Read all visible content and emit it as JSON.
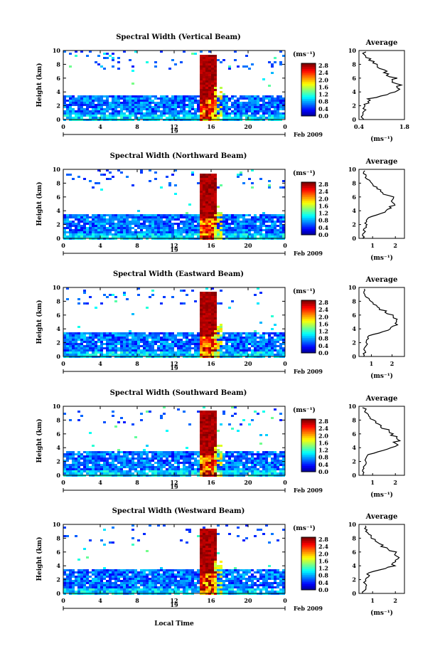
{
  "figure": {
    "xlabel": "Local Time",
    "date_label": "Feb 2009",
    "day_label": "19",
    "unit_label": "(ms⁻¹)",
    "unit_label_avg": "(ms⁻¹)",
    "avg_title": "Average",
    "ylabel": "Height (km)"
  },
  "chart_data": [
    {
      "type": "heatmap",
      "title": "Spectral Width (Vertical Beam)",
      "ylabel": "Height (km)",
      "x_ticks": [
        "0",
        "4",
        "8",
        "12",
        "16",
        "20",
        "0"
      ],
      "y_ticks": [
        "0",
        "2",
        "4",
        "6",
        "8",
        "10"
      ],
      "xlim": [
        0,
        24
      ],
      "ylim": [
        0,
        10
      ],
      "colorbar": {
        "label": "(ms⁻¹)",
        "ticks": [
          "2.8",
          "2.4",
          "2.0",
          "1.6",
          "1.2",
          "0.8",
          "0.4",
          "0.0"
        ],
        "range": [
          0,
          2.8
        ]
      },
      "average": {
        "title": "Average",
        "xlabel": "(ms⁻¹)",
        "x_ticks": [
          "0.4",
          "1.8"
        ],
        "xlim": [
          0.4,
          1.8
        ],
        "y_ticks": [
          "0",
          "2",
          "4",
          "6",
          "8",
          "10"
        ],
        "heights": [
          0,
          1,
          2,
          3,
          3.5,
          4,
          5,
          6,
          7,
          8,
          9,
          10
        ],
        "values": [
          0.5,
          0.55,
          0.6,
          0.7,
          1.2,
          1.45,
          1.6,
          1.5,
          1.2,
          0.9,
          0.65,
          0.55
        ]
      }
    },
    {
      "type": "heatmap",
      "title": "Spectral Width (Northward Beam)",
      "ylabel": "Height (km)",
      "x_ticks": [
        "0",
        "4",
        "8",
        "12",
        "16",
        "20",
        "0"
      ],
      "y_ticks": [
        "0",
        "2",
        "4",
        "6",
        "8",
        "10"
      ],
      "xlim": [
        0,
        24
      ],
      "ylim": [
        0,
        10
      ],
      "colorbar": {
        "label": "(ms⁻¹)",
        "ticks": [
          "2.8",
          "2.4",
          "2.0",
          "1.6",
          "1.2",
          "0.8",
          "0.4",
          "0.0"
        ],
        "range": [
          0,
          2.8
        ]
      },
      "average": {
        "title": "Average",
        "xlabel": "(ms⁻¹)",
        "x_ticks": [
          "1",
          "2"
        ],
        "xlim": [
          0.4,
          2.4
        ],
        "y_ticks": [
          "0",
          "2",
          "4",
          "6",
          "8",
          "10"
        ],
        "heights": [
          0,
          1,
          2,
          3,
          3.5,
          4,
          5,
          6,
          7,
          8,
          9,
          10
        ],
        "values": [
          0.6,
          0.65,
          0.7,
          0.8,
          1.3,
          1.7,
          2.0,
          1.8,
          1.3,
          0.9,
          0.7,
          0.6
        ]
      }
    },
    {
      "type": "heatmap",
      "title": "Spectral Width (Eastward Beam)",
      "ylabel": "Height (km)",
      "x_ticks": [
        "0",
        "4",
        "8",
        "12",
        "16",
        "20",
        "0"
      ],
      "y_ticks": [
        "0",
        "2",
        "4",
        "6",
        "8",
        "10"
      ],
      "xlim": [
        0,
        24
      ],
      "ylim": [
        0,
        10
      ],
      "colorbar": {
        "label": "(ms⁻¹)",
        "ticks": [
          "2.8",
          "2.4",
          "2.0",
          "1.6",
          "1.2",
          "0.8",
          "0.4",
          "0.0"
        ],
        "range": [
          0,
          2.8
        ]
      },
      "average": {
        "title": "Average",
        "xlabel": "(ms⁻¹)",
        "x_ticks": [
          "1",
          "2"
        ],
        "xlim": [
          0.4,
          2.6
        ],
        "y_ticks": [
          "0",
          "2",
          "4",
          "6",
          "8",
          "10"
        ],
        "heights": [
          0,
          1,
          2,
          3,
          3.5,
          4,
          5,
          6,
          7,
          8,
          9,
          10
        ],
        "values": [
          0.6,
          0.7,
          0.75,
          0.9,
          1.5,
          2.0,
          2.3,
          2.0,
          1.4,
          1.0,
          0.7,
          0.6
        ]
      }
    },
    {
      "type": "heatmap",
      "title": "Spectral Width (Southward Beam)",
      "ylabel": "Height (km)",
      "x_ticks": [
        "0",
        "4",
        "8",
        "12",
        "16",
        "20",
        "0"
      ],
      "y_ticks": [
        "0",
        "2",
        "4",
        "6",
        "8",
        "10"
      ],
      "xlim": [
        0,
        24
      ],
      "ylim": [
        0,
        10
      ],
      "colorbar": {
        "label": "(ms⁻¹)",
        "ticks": [
          "2.8",
          "2.4",
          "2.0",
          "1.6",
          "1.2",
          "0.8",
          "0.4",
          "0.0"
        ],
        "range": [
          0,
          2.8
        ]
      },
      "average": {
        "title": "Average",
        "xlabel": "(ms⁻¹)",
        "x_ticks": [
          "1",
          "2"
        ],
        "xlim": [
          0.4,
          2.4
        ],
        "y_ticks": [
          "0",
          "2",
          "4",
          "6",
          "8",
          "10"
        ],
        "heights": [
          0,
          1,
          2,
          3,
          3.5,
          4,
          5,
          6,
          7,
          8,
          9,
          10
        ],
        "values": [
          0.6,
          0.65,
          0.7,
          0.85,
          1.4,
          1.9,
          2.1,
          1.9,
          1.4,
          1.0,
          0.75,
          0.6
        ]
      }
    },
    {
      "type": "heatmap",
      "title": "Spectral Width (Westward Beam)",
      "ylabel": "Height (km)",
      "x_ticks": [
        "0",
        "4",
        "8",
        "12",
        "16",
        "20",
        "0"
      ],
      "y_ticks": [
        "0",
        "2",
        "4",
        "6",
        "8",
        "10"
      ],
      "xlim": [
        0,
        24
      ],
      "ylim": [
        0,
        10
      ],
      "colorbar": {
        "label": "(ms⁻¹)",
        "ticks": [
          "2.8",
          "2.4",
          "2.0",
          "1.6",
          "1.2",
          "0.8",
          "0.4",
          "0.0"
        ],
        "range": [
          0,
          2.8
        ]
      },
      "average": {
        "title": "Average",
        "xlabel": "(ms⁻¹)",
        "x_ticks": [
          "1",
          "2"
        ],
        "xlim": [
          0.4,
          2.4
        ],
        "y_ticks": [
          "0",
          "2",
          "4",
          "6",
          "8",
          "10"
        ],
        "heights": [
          0,
          1,
          2,
          3,
          3.5,
          4,
          5,
          6,
          7,
          8,
          9,
          10
        ],
        "values": [
          0.6,
          0.65,
          0.7,
          0.85,
          1.4,
          1.9,
          2.1,
          1.9,
          1.4,
          1.0,
          0.75,
          0.6
        ]
      }
    }
  ]
}
